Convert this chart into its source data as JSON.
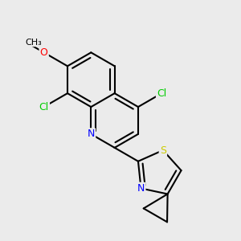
{
  "background_color": "#ebebeb",
  "bond_color": "#000000",
  "bond_width": 1.5,
  "dbo": 0.018,
  "atom_colors": {
    "Cl": "#00cc00",
    "N": "#0000ff",
    "O": "#ff0000",
    "S": "#cccc00",
    "C": "#000000"
  },
  "font_size": 9
}
